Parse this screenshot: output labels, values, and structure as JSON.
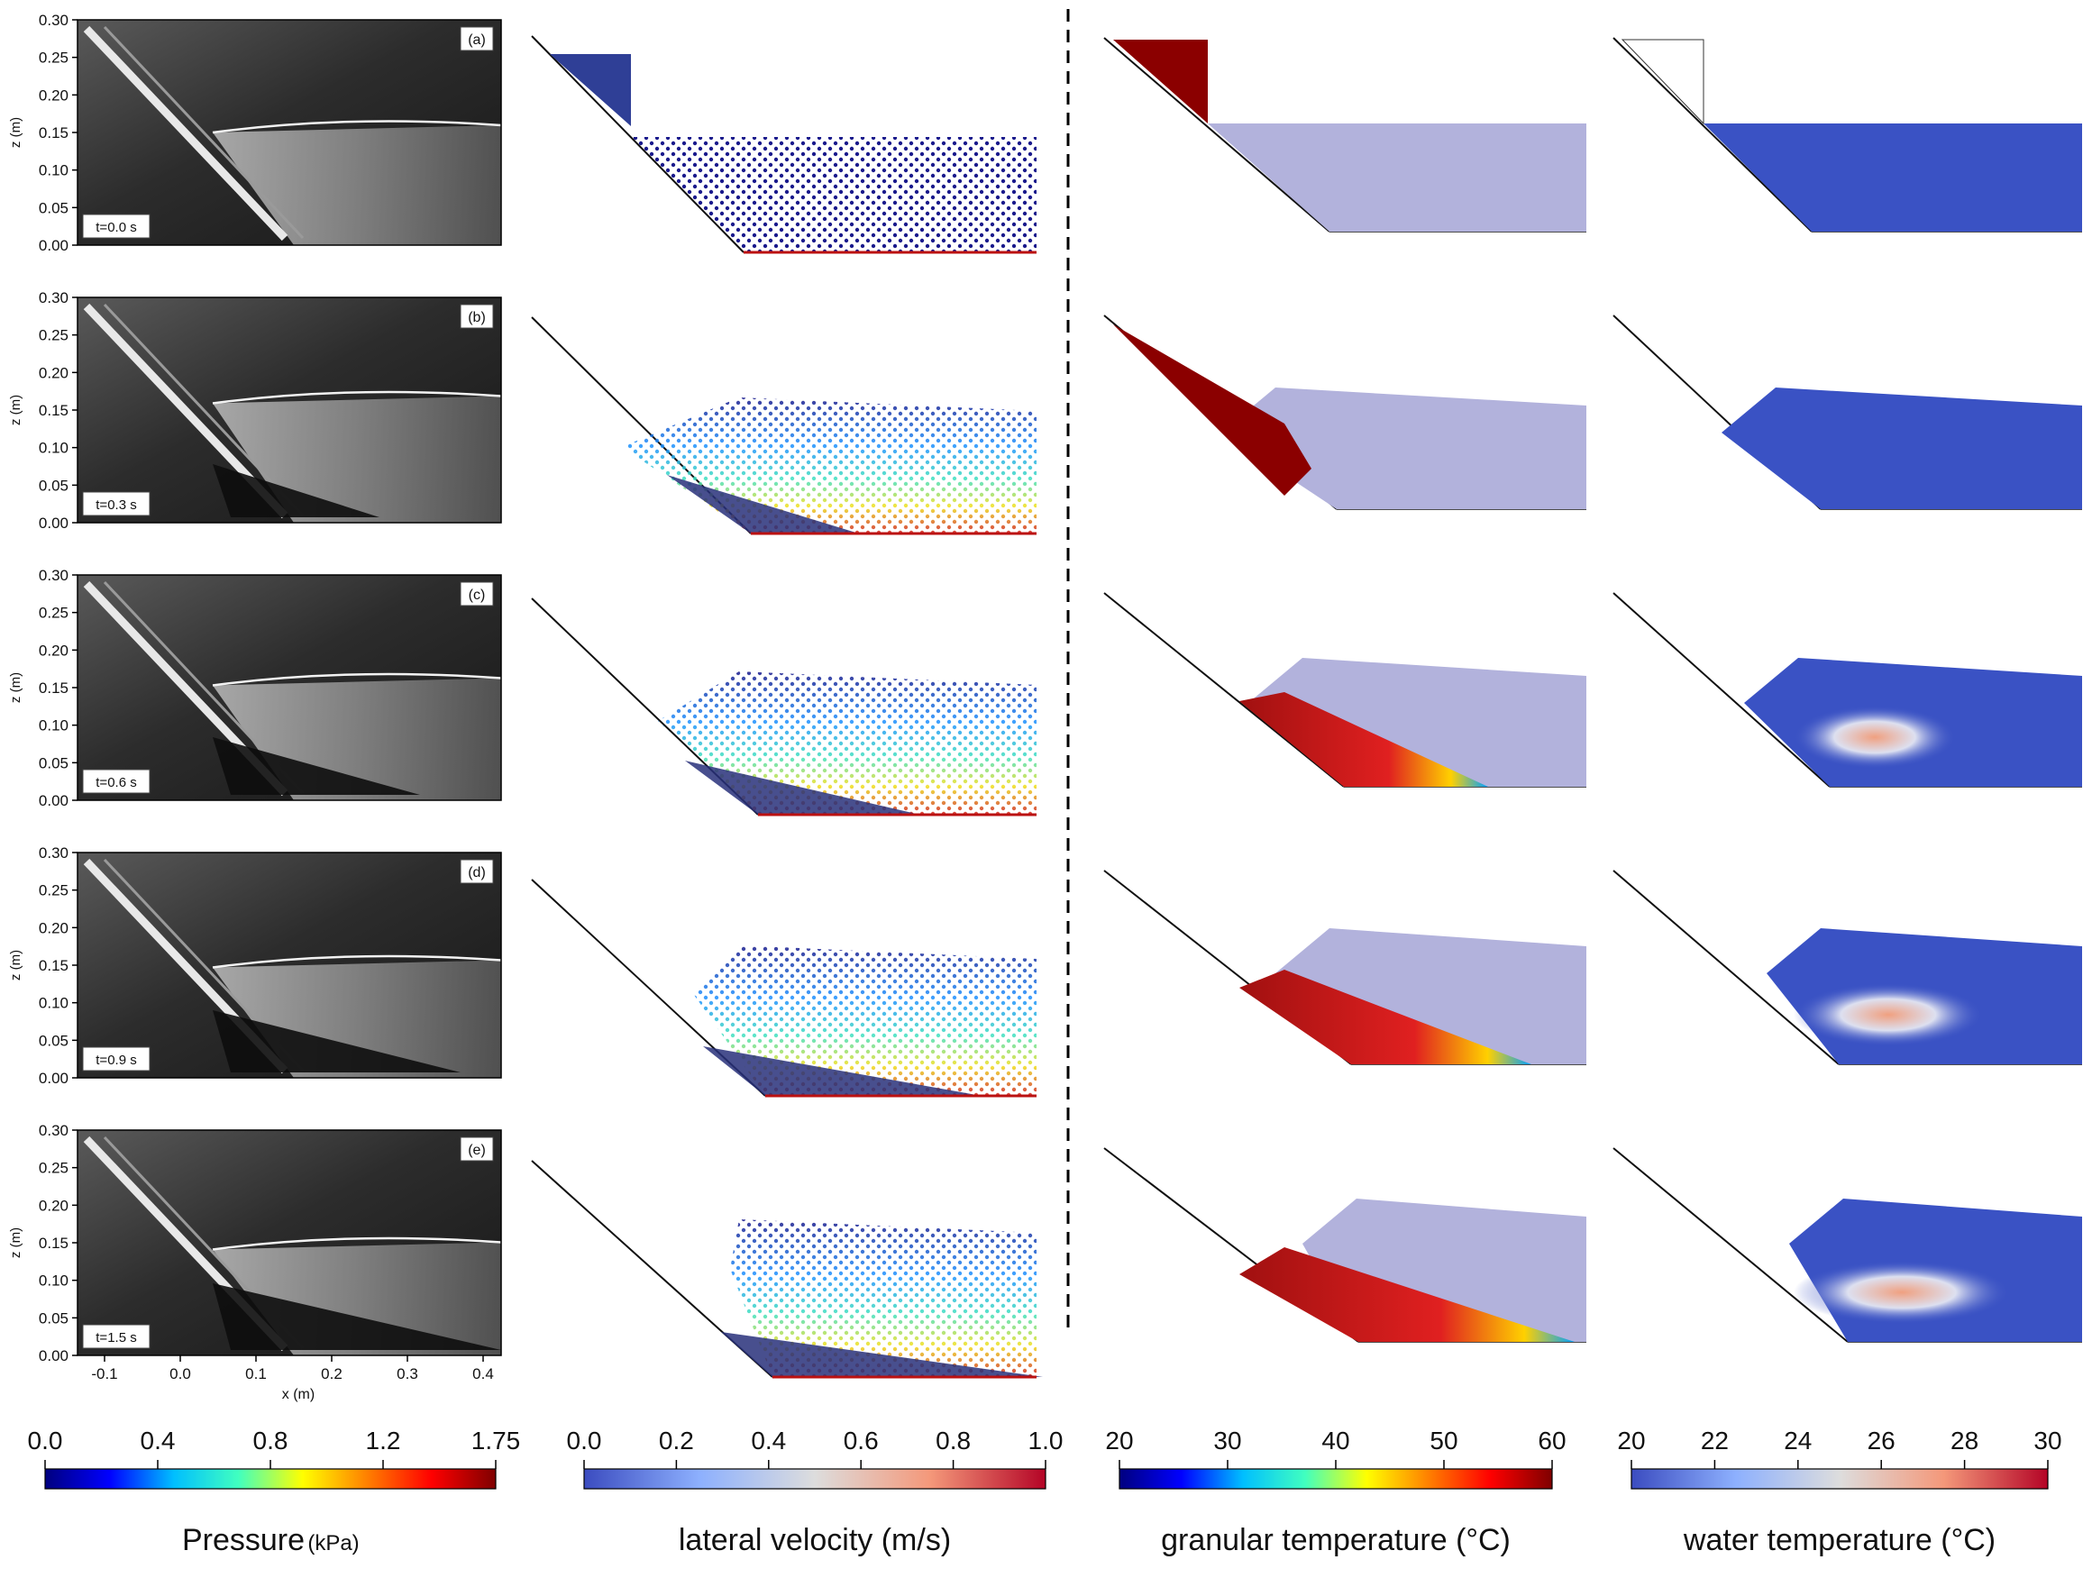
{
  "figure": {
    "photo_panels": [
      {
        "label": "(a)",
        "time": "t=0.0 s"
      },
      {
        "label": "(b)",
        "time": "t=0.3 s"
      },
      {
        "label": "(c)",
        "time": "t=0.6 s"
      },
      {
        "label": "(d)",
        "time": "t=0.9 s"
      },
      {
        "label": "(e)",
        "time": "t=1.5 s"
      }
    ],
    "z_ticks": [
      "0.30",
      "0.25",
      "0.20",
      "0.15",
      "0.10",
      "0.05",
      "0.00"
    ],
    "x_ticks": [
      "-0.1",
      "0.0",
      "0.1",
      "0.2",
      "0.3",
      "0.4"
    ],
    "z_axis_label": "z (m)",
    "x_axis_label": "x (m)",
    "colorbars": [
      {
        "id": "pressure",
        "ticks": [
          "0.0",
          "0.4",
          "0.8",
          "1.2",
          "1.75"
        ],
        "title": "Pressure",
        "unit": "(kPa)",
        "colors": [
          "#00007f",
          "#0000ff",
          "#00bfff",
          "#40ffc0",
          "#ffff00",
          "#ff8000",
          "#ff0000",
          "#7f0000"
        ]
      },
      {
        "id": "lateral-velocity",
        "ticks": [
          "0.0",
          "0.2",
          "0.4",
          "0.6",
          "0.8",
          "1.0"
        ],
        "title": "lateral velocity (m/s)",
        "unit": "",
        "colors": [
          "#3b4cc0",
          "#8db0fe",
          "#dddddd",
          "#f4987a",
          "#b40426"
        ]
      },
      {
        "id": "granular-temperature",
        "ticks": [
          "20",
          "30",
          "40",
          "50",
          "60"
        ],
        "title": "granular temperature (°C)",
        "unit": "",
        "colors": [
          "#00007f",
          "#0000ff",
          "#00bfff",
          "#40ffc0",
          "#ffff00",
          "#ff8000",
          "#ff0000",
          "#7f0000"
        ]
      },
      {
        "id": "water-temperature",
        "ticks": [
          "20",
          "22",
          "24",
          "26",
          "28",
          "30"
        ],
        "title": "water temperature (°C)",
        "unit": "",
        "colors": [
          "#3b4cc0",
          "#8db0fe",
          "#dddddd",
          "#f4987a",
          "#b40426"
        ]
      }
    ],
    "colors": {
      "water_fill": "#b2b2dc",
      "water_deep": "#3a52c4",
      "granular_hot": "#8b0000",
      "dot_low": "#1a1a8c",
      "divider": "#000000"
    }
  }
}
